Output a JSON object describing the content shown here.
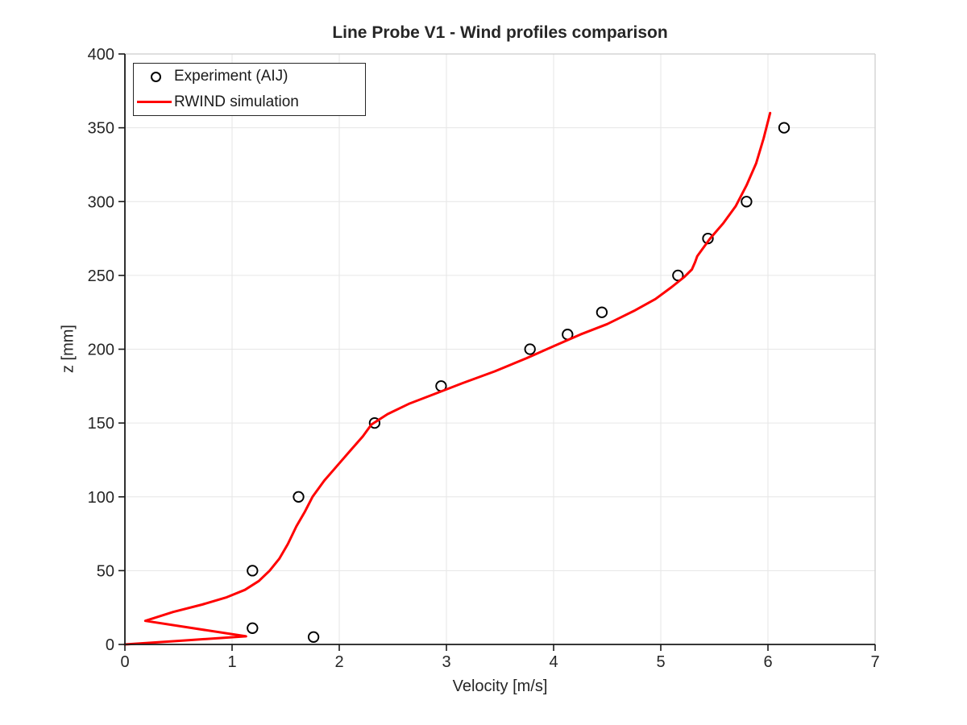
{
  "title": "Line Probe V1 - Wind profiles comparison",
  "colors": {
    "background": "#ffffff",
    "grid": "#e6e6e6",
    "spine_dark": "#1a1a1a",
    "spine_light": "#cccccc",
    "text": "#262626",
    "experiment_marker": "#000000",
    "simulation_line": "#ff0000"
  },
  "chart_data": {
    "type": "line",
    "title": "Line Probe V1 - Wind profiles comparison",
    "xlabel": "Velocity [m/s]",
    "ylabel": "z [mm]",
    "xlim": [
      0,
      7
    ],
    "ylim": [
      0,
      400
    ],
    "xticks": [
      0,
      1,
      2,
      3,
      4,
      5,
      6,
      7
    ],
    "yticks": [
      0,
      50,
      100,
      150,
      200,
      250,
      300,
      350,
      400
    ],
    "grid": true,
    "legend_position": "top-left",
    "series": [
      {
        "name": "Experiment (AIJ)",
        "type": "scatter",
        "marker": "open-circle",
        "color": "#000000",
        "points": [
          [
            1.76,
            5
          ],
          [
            1.19,
            11
          ],
          [
            1.19,
            50
          ],
          [
            1.62,
            100
          ],
          [
            2.33,
            150
          ],
          [
            2.95,
            175
          ],
          [
            3.78,
            200
          ],
          [
            4.13,
            210
          ],
          [
            4.45,
            225
          ],
          [
            5.16,
            250
          ],
          [
            5.44,
            275
          ],
          [
            5.8,
            300
          ],
          [
            6.15,
            350
          ]
        ]
      },
      {
        "name": "RWIND simulation",
        "type": "line",
        "color": "#ff0000",
        "points": [
          [
            0,
            0
          ],
          [
            0.55,
            2.7
          ],
          [
            1.13,
            5.5
          ],
          [
            0.19,
            16
          ],
          [
            0.45,
            22
          ],
          [
            0.72,
            27
          ],
          [
            0.95,
            32
          ],
          [
            1.12,
            37
          ],
          [
            1.25,
            43
          ],
          [
            1.35,
            50
          ],
          [
            1.44,
            58
          ],
          [
            1.52,
            68
          ],
          [
            1.6,
            80
          ],
          [
            1.68,
            90
          ],
          [
            1.75,
            100
          ],
          [
            1.86,
            111
          ],
          [
            1.98,
            121
          ],
          [
            2.1,
            131
          ],
          [
            2.22,
            141
          ],
          [
            2.3,
            149
          ],
          [
            2.45,
            156
          ],
          [
            2.65,
            163
          ],
          [
            2.9,
            170
          ],
          [
            3.15,
            177
          ],
          [
            3.45,
            185
          ],
          [
            3.75,
            194
          ],
          [
            4.0,
            202
          ],
          [
            4.25,
            210
          ],
          [
            4.5,
            217
          ],
          [
            4.75,
            226
          ],
          [
            4.95,
            234
          ],
          [
            5.1,
            242
          ],
          [
            5.22,
            249
          ],
          [
            5.29,
            254
          ],
          [
            5.32,
            259
          ],
          [
            5.34,
            263
          ],
          [
            5.38,
            267
          ],
          [
            5.46,
            275
          ],
          [
            5.58,
            285
          ],
          [
            5.7,
            297
          ],
          [
            5.8,
            311
          ],
          [
            5.89,
            326
          ],
          [
            5.96,
            343
          ],
          [
            6.02,
            360
          ]
        ]
      }
    ]
  }
}
